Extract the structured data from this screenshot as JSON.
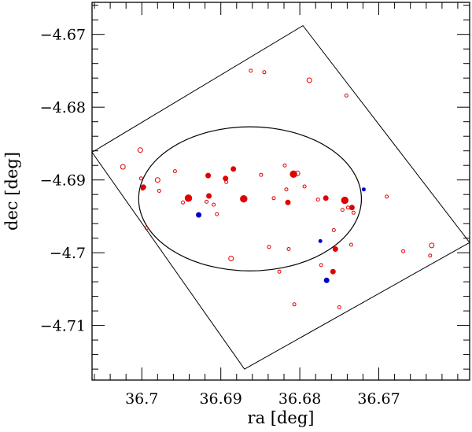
{
  "chart_data": {
    "type": "scatter",
    "title": "",
    "xlabel": "ra [deg]",
    "ylabel": "dec [deg]",
    "xlim": [
      36.7063,
      36.6585
    ],
    "ylim": [
      -4.7175,
      -4.6656
    ],
    "x_ticks": [
      {
        "value": 36.7,
        "label": "36.7"
      },
      {
        "value": 36.69,
        "label": "36.69"
      },
      {
        "value": 36.68,
        "label": "36.68"
      },
      {
        "value": 36.67,
        "label": "36.67"
      }
    ],
    "x_minor_step": 0.002,
    "y_ticks": [
      {
        "value": -4.67,
        "label": "−4.67"
      },
      {
        "value": -4.68,
        "label": "−4.68"
      },
      {
        "value": -4.69,
        "label": "−4.69"
      },
      {
        "value": -4.7,
        "label": "−4.7"
      },
      {
        "value": -4.71,
        "label": "−4.71"
      }
    ],
    "y_minor_step": 0.002,
    "grid": false,
    "field_polygon": [
      [
        36.7063,
        -4.6862
      ],
      [
        36.6796,
        -4.6688
      ],
      [
        36.6585,
        -4.6986
      ],
      [
        36.687,
        -4.716
      ]
    ],
    "ellipse": {
      "center": [
        36.6863,
        -4.6926
      ],
      "semi_axis_ra": 0.0141,
      "semi_axis_dec": 0.0099
    },
    "series": [
      {
        "name": "open red",
        "color": "#e00000",
        "filled": false,
        "points": [
          [
            36.6862,
            -4.675,
            1
          ],
          [
            36.6845,
            -4.6752,
            1
          ],
          [
            36.6788,
            -4.6763,
            2
          ],
          [
            36.6741,
            -4.6784,
            1
          ],
          [
            36.7024,
            -4.6882,
            2
          ],
          [
            36.7002,
            -4.6859,
            2
          ],
          [
            36.7001,
            -4.6898,
            1
          ],
          [
            36.6999,
            -4.6912,
            1
          ],
          [
            36.698,
            -4.69,
            2
          ],
          [
            36.6958,
            -4.6888,
            1
          ],
          [
            36.6978,
            -4.6915,
            1
          ],
          [
            36.6948,
            -4.6931,
            1
          ],
          [
            36.6918,
            -4.693,
            1
          ],
          [
            36.6909,
            -4.6934,
            1
          ],
          [
            36.6893,
            -4.6903,
            1
          ],
          [
            36.6849,
            -4.6893,
            1
          ],
          [
            36.6833,
            -4.6925,
            1
          ],
          [
            36.6819,
            -4.688,
            1
          ],
          [
            36.6803,
            -4.6891,
            2
          ],
          [
            36.6794,
            -4.6909,
            1
          ],
          [
            36.6817,
            -4.6913,
            1
          ],
          [
            36.6777,
            -4.6927,
            1
          ],
          [
            36.6746,
            -4.6941,
            1
          ],
          [
            36.6739,
            -4.6938,
            1
          ],
          [
            36.6732,
            -4.6945,
            1
          ],
          [
            36.6735,
            -4.6989,
            1
          ],
          [
            36.669,
            -4.6923,
            1
          ],
          [
            36.6669,
            -4.6998,
            1
          ],
          [
            36.6633,
            -4.699,
            2
          ],
          [
            36.6635,
            -4.7004,
            1
          ],
          [
            36.6905,
            -4.6947,
            1
          ],
          [
            36.6887,
            -4.7008,
            2
          ],
          [
            36.6839,
            -4.6992,
            1
          ],
          [
            36.6826,
            -4.7026,
            1
          ],
          [
            36.6814,
            -4.6995,
            1
          ],
          [
            36.6757,
            -4.6969,
            1
          ],
          [
            36.6773,
            -4.7017,
            1
          ],
          [
            36.6807,
            -4.7071,
            1
          ],
          [
            36.675,
            -4.7075,
            1
          ],
          [
            36.6994,
            -4.6966,
            1
          ]
        ]
      },
      {
        "name": "filled red",
        "color": "#e00000",
        "filled": true,
        "points": [
          [
            36.6998,
            -4.691,
            2
          ],
          [
            36.6941,
            -4.6925,
            3
          ],
          [
            36.6916,
            -4.6894,
            2
          ],
          [
            36.6915,
            -4.6922,
            2
          ],
          [
            36.6894,
            -4.6898,
            2
          ],
          [
            36.6884,
            -4.6885,
            2
          ],
          [
            36.6871,
            -4.6926,
            3
          ],
          [
            36.6808,
            -4.6892,
            3
          ],
          [
            36.6815,
            -4.6931,
            2
          ],
          [
            36.6767,
            -4.6925,
            2
          ],
          [
            36.6743,
            -4.6928,
            3
          ],
          [
            36.6734,
            -4.6938,
            2
          ],
          [
            36.6755,
            -4.6995,
            2
          ],
          [
            36.6758,
            -4.7026,
            2
          ]
        ]
      },
      {
        "name": "filled blue",
        "color": "#0000cc",
        "filled": true,
        "points": [
          [
            36.6719,
            -4.6913,
            1
          ],
          [
            36.6928,
            -4.6948,
            2
          ],
          [
            36.6774,
            -4.6984,
            1
          ],
          [
            36.6766,
            -4.7038,
            2
          ]
        ]
      }
    ]
  }
}
